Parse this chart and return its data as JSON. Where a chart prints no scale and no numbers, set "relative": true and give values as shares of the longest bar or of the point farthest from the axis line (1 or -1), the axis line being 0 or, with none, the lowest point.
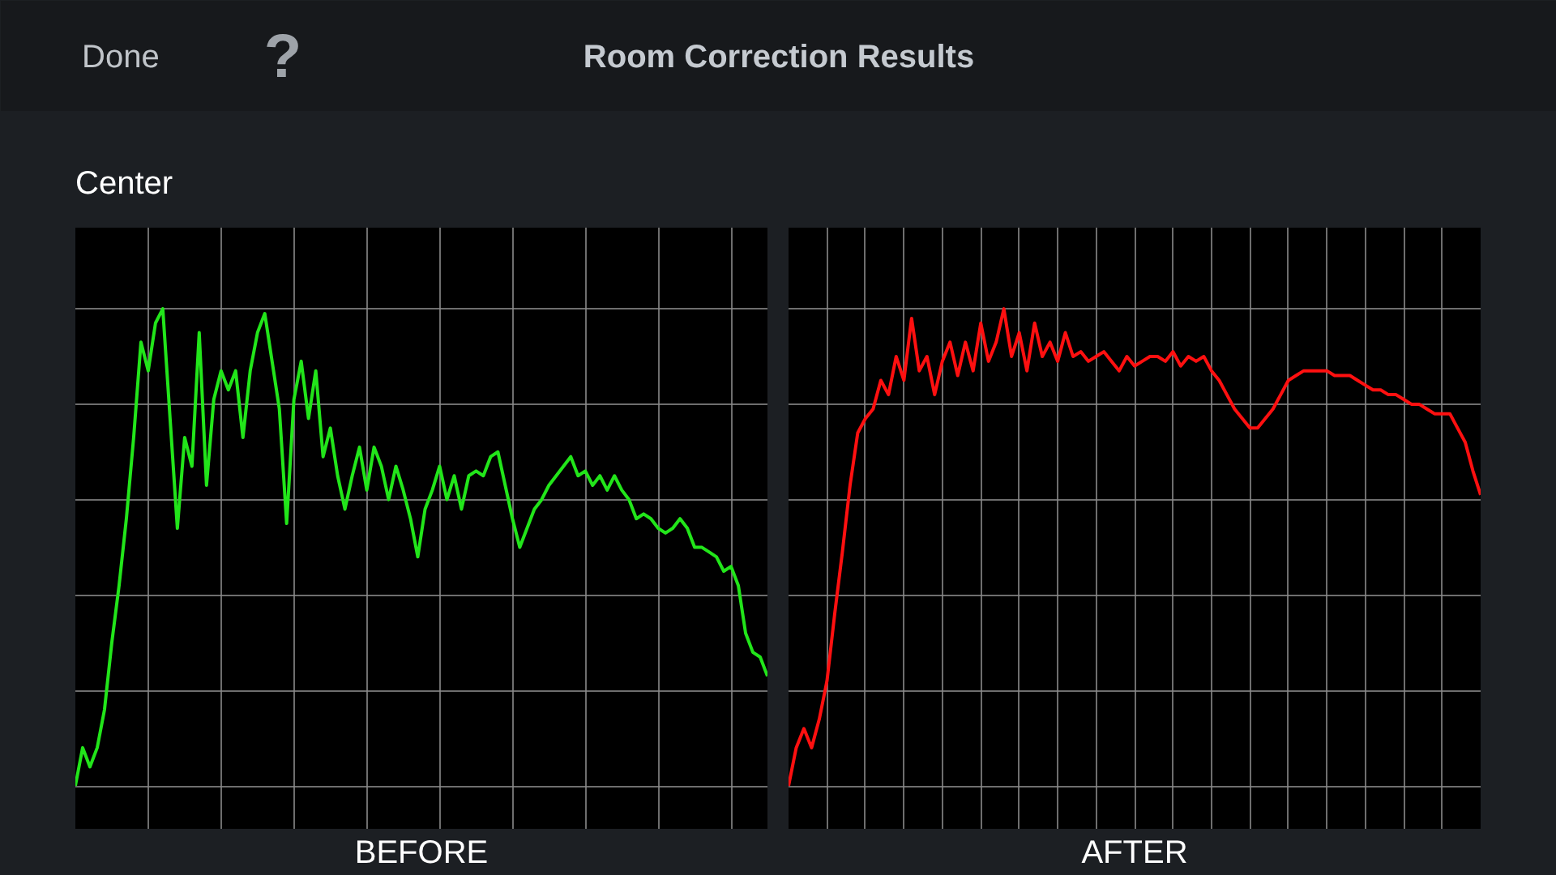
{
  "chart_data": [
    {
      "type": "line",
      "title": "Room Correction Results",
      "subtitle": "Center",
      "annotations": [
        "Done",
        "?"
      ],
      "xlabel": "BEFORE",
      "relative": true,
      "grid": true,
      "tick_labels": false,
      "categories": [
        null,
        null,
        null,
        null,
        null,
        null,
        null,
        null,
        null,
        null,
        null,
        null,
        null,
        null,
        null,
        null,
        null,
        null,
        null,
        null,
        null,
        null,
        null,
        null,
        null,
        null,
        null,
        null,
        null,
        null,
        null,
        null,
        null,
        null,
        null,
        null,
        null,
        null,
        null,
        null,
        null,
        null,
        null,
        null,
        null,
        null,
        null,
        null,
        null,
        null,
        null,
        null,
        null,
        null,
        null,
        null,
        null,
        null,
        null,
        null,
        null,
        null,
        null,
        null,
        null,
        null,
        null,
        null,
        null,
        null,
        null,
        null,
        null,
        null,
        null,
        null,
        null,
        null,
        null,
        null,
        null,
        null,
        null,
        null,
        null,
        null,
        null,
        null,
        null,
        null,
        null,
        null,
        null,
        null,
        null,
        null
      ],
      "series": [
        {
          "color": "#22e51a",
          "values": [
            0,
            0.08,
            0.04,
            0.08,
            0.16,
            0.3,
            0.42,
            0.56,
            0.73,
            0.93,
            0.87,
            0.97,
            1,
            0.77,
            0.54,
            0.73,
            0.67,
            0.95,
            0.63,
            0.81,
            0.87,
            0.83,
            0.87,
            0.73,
            0.87,
            0.95,
            0.99,
            0.89,
            0.79,
            0.55,
            0.81,
            0.89,
            0.77,
            0.87,
            0.69,
            0.75,
            0.65,
            0.58,
            0.65,
            0.71,
            0.62,
            0.71,
            0.67,
            0.6,
            0.67,
            0.62,
            0.56,
            0.48,
            0.58,
            0.62,
            0.67,
            0.6,
            0.65,
            0.58,
            0.65,
            0.66,
            0.65,
            0.69,
            0.7,
            0.63,
            0.56,
            0.5,
            0.54,
            0.58,
            0.6,
            0.63,
            0.65,
            0.67,
            0.69,
            0.65,
            0.66,
            0.63,
            0.65,
            0.62,
            0.65,
            0.62,
            0.6,
            0.56,
            0.57,
            0.56,
            0.54,
            0.53,
            0.54,
            0.56,
            0.54,
            0.5,
            0.5,
            0.49,
            0.48,
            0.45,
            0.46,
            0.42,
            0.32,
            0.28,
            0.27,
            0.23
          ]
        }
      ]
    },
    {
      "type": "line",
      "xlabel": "AFTER",
      "relative": true,
      "grid": true,
      "tick_labels": false,
      "categories": [
        null,
        null,
        null,
        null,
        null,
        null,
        null,
        null,
        null,
        null,
        null,
        null,
        null,
        null,
        null,
        null,
        null,
        null,
        null,
        null,
        null,
        null,
        null,
        null,
        null,
        null,
        null,
        null,
        null,
        null,
        null,
        null,
        null,
        null,
        null,
        null,
        null,
        null,
        null,
        null,
        null,
        null,
        null,
        null,
        null,
        null,
        null,
        null,
        null,
        null,
        null,
        null,
        null,
        null,
        null,
        null,
        null,
        null,
        null,
        null,
        null,
        null,
        null,
        null,
        null,
        null,
        null,
        null,
        null,
        null,
        null,
        null,
        null,
        null,
        null,
        null,
        null,
        null,
        null,
        null,
        null,
        null,
        null,
        null,
        null,
        null,
        null,
        null,
        null,
        null,
        null
      ],
      "series": [
        {
          "color": "#ff1010",
          "values": [
            0,
            0.08,
            0.12,
            0.08,
            0.14,
            0.22,
            0.36,
            0.49,
            0.63,
            0.74,
            0.77,
            0.79,
            0.85,
            0.82,
            0.9,
            0.85,
            0.98,
            0.87,
            0.9,
            0.82,
            0.89,
            0.93,
            0.86,
            0.93,
            0.87,
            0.97,
            0.89,
            0.93,
            1,
            0.9,
            0.95,
            0.87,
            0.97,
            0.9,
            0.93,
            0.89,
            0.95,
            0.9,
            0.91,
            0.89,
            0.9,
            0.91,
            0.89,
            0.87,
            0.9,
            0.88,
            0.89,
            0.9,
            0.9,
            0.89,
            0.91,
            0.88,
            0.9,
            0.89,
            0.9,
            0.87,
            0.85,
            0.82,
            0.79,
            0.77,
            0.75,
            0.75,
            0.77,
            0.79,
            0.82,
            0.85,
            0.86,
            0.87,
            0.87,
            0.87,
            0.87,
            0.86,
            0.86,
            0.86,
            0.85,
            0.84,
            0.83,
            0.83,
            0.82,
            0.82,
            0.81,
            0.8,
            0.8,
            0.79,
            0.78,
            0.78,
            0.78,
            0.75,
            0.72,
            0.66,
            0.61
          ]
        }
      ]
    }
  ]
}
